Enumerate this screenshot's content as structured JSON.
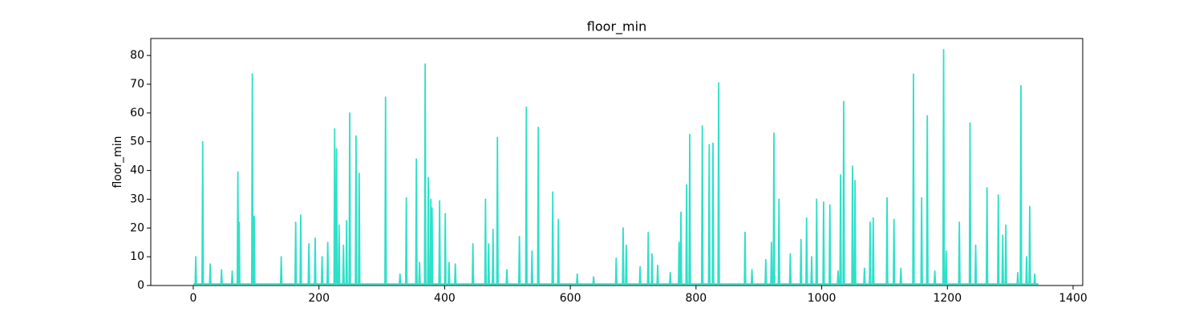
{
  "chart_data": {
    "type": "line",
    "title": "floor_min",
    "ylabel": "floor_min",
    "xlim": [
      -67.6,
      1415.3
    ],
    "ylim": [
      0,
      85.9
    ],
    "xticks": [
      0,
      200,
      400,
      600,
      800,
      1000,
      1200,
      1400
    ],
    "yticks": [
      0,
      10,
      20,
      30,
      40,
      50,
      60,
      70,
      80
    ],
    "grid": false,
    "x": [
      0,
      3,
      4,
      5,
      14,
      15,
      16,
      26,
      27,
      28,
      44,
      45,
      46,
      61,
      62,
      63,
      70,
      71,
      72,
      73,
      74,
      93,
      94,
      95,
      96,
      97,
      98,
      139,
      140,
      141,
      162,
      163,
      164,
      170,
      171,
      172,
      183,
      184,
      185,
      193,
      194,
      195,
      204,
      205,
      206,
      213,
      214,
      215,
      224,
      225,
      226,
      227,
      228,
      229,
      231,
      232,
      233,
      238,
      239,
      240,
      243,
      244,
      245,
      248,
      249,
      250,
      258,
      259,
      260,
      263,
      264,
      265,
      305,
      306,
      307,
      328,
      329,
      330,
      338,
      339,
      340,
      354,
      355,
      356,
      359,
      360,
      361,
      368,
      369,
      370,
      373,
      374,
      375,
      377,
      378,
      379,
      380,
      381,
      391,
      392,
      393,
      400,
      401,
      402,
      406,
      407,
      408,
      416,
      417,
      418,
      444,
      445,
      446,
      464,
      465,
      466,
      469,
      470,
      471,
      476,
      477,
      478,
      483,
      484,
      485,
      498,
      499,
      500,
      518,
      519,
      520,
      529,
      530,
      531,
      538,
      539,
      540,
      548,
      549,
      550,
      571,
      572,
      573,
      580,
      581,
      582,
      610,
      611,
      612,
      636,
      637,
      638,
      672,
      673,
      674,
      683,
      684,
      685,
      688,
      689,
      690,
      710,
      711,
      712,
      723,
      724,
      725,
      729,
      730,
      731,
      738,
      739,
      740,
      758,
      759,
      760,
      772,
      773,
      774,
      775,
      776,
      777,
      784,
      785,
      786,
      789,
      790,
      791,
      809,
      810,
      811,
      820,
      821,
      822,
      826,
      827,
      828,
      835,
      836,
      837,
      877,
      878,
      879,
      888,
      889,
      890,
      910,
      911,
      912,
      919,
      920,
      921,
      923,
      924,
      925,
      931,
      932,
      933,
      949,
      950,
      951,
      966,
      967,
      968,
      975,
      976,
      977,
      983,
      984,
      985,
      991,
      992,
      993,
      1002,
      1003,
      1004,
      1012,
      1013,
      1014,
      1025,
      1026,
      1027,
      1029,
      1030,
      1031,
      1034,
      1035,
      1036,
      1048,
      1049,
      1050,
      1052,
      1053,
      1054,
      1067,
      1068,
      1069,
      1076,
      1077,
      1078,
      1081,
      1082,
      1083,
      1103,
      1104,
      1105,
      1114,
      1115,
      1116,
      1125,
      1126,
      1127,
      1145,
      1146,
      1147,
      1158,
      1159,
      1160,
      1167,
      1168,
      1169,
      1179,
      1180,
      1181,
      1193,
      1194,
      1195,
      1197,
      1198,
      1199,
      1218,
      1219,
      1220,
      1235,
      1236,
      1237,
      1244,
      1245,
      1246,
      1262,
      1263,
      1264,
      1280,
      1281,
      1282,
      1287,
      1288,
      1289,
      1292,
      1293,
      1294,
      1311,
      1312,
      1313,
      1316,
      1317,
      1318,
      1325,
      1326,
      1327,
      1330,
      1331,
      1332,
      1338,
      1339,
      1340,
      1345
    ],
    "series": [
      {
        "color": "#2fe0c8",
        "values": [
          0.5,
          0.5,
          10,
          0.5,
          0.5,
          50,
          0.5,
          0.5,
          7.5,
          0.5,
          0.5,
          5.5,
          0.5,
          0.5,
          5,
          0.5,
          0.5,
          39.5,
          0.5,
          22,
          0.5,
          0.5,
          73.5,
          0.5,
          0.5,
          24,
          0.5,
          0.5,
          10,
          0.5,
          0.5,
          22,
          0.5,
          0.5,
          24.5,
          0.5,
          0.5,
          14.5,
          0.5,
          0.5,
          16.5,
          0.5,
          0.5,
          10,
          0.5,
          0.5,
          15,
          0.5,
          0.5,
          54.5,
          0.5,
          0.5,
          47.5,
          0.5,
          0.5,
          21,
          0.5,
          0.5,
          14,
          0.5,
          0.5,
          22.5,
          0.5,
          0.5,
          60,
          0.5,
          0.5,
          52,
          0.5,
          0.5,
          39,
          0.5,
          0.5,
          65.5,
          0.5,
          0.5,
          4,
          0.5,
          0.5,
          30.5,
          0.5,
          0.5,
          44,
          0.5,
          0.5,
          8,
          0.5,
          0.5,
          77,
          0.5,
          0.5,
          37.5,
          0.5,
          0.5,
          30,
          0.5,
          27,
          0.5,
          0.5,
          29.5,
          0.5,
          0.5,
          25,
          0.5,
          0.5,
          8,
          0.5,
          0.5,
          7.5,
          0.5,
          0.5,
          14.5,
          0.5,
          0.5,
          30,
          0.5,
          0.5,
          14.5,
          0.5,
          0.5,
          19.5,
          0.5,
          0.5,
          51.5,
          0.5,
          0.5,
          5.5,
          0.5,
          0.5,
          17,
          0.5,
          0.5,
          62,
          0.5,
          0.5,
          12,
          0.5,
          0.5,
          55,
          0.5,
          0.5,
          32.5,
          0.5,
          0.5,
          23,
          0.5,
          0.5,
          4,
          0.5,
          0.5,
          3,
          0.5,
          0.5,
          9.5,
          0.5,
          0.5,
          20,
          0.5,
          0.5,
          14,
          0.5,
          0.5,
          6.5,
          0.5,
          0.5,
          18.5,
          0.5,
          0.5,
          11,
          0.5,
          0.5,
          7,
          0.5,
          0.5,
          4.5,
          0.5,
          0.5,
          15,
          0.5,
          0.5,
          25.5,
          0.5,
          0.5,
          35,
          0.5,
          0.5,
          52.5,
          0.5,
          0.5,
          55.5,
          0.5,
          0.5,
          49,
          0.5,
          0.5,
          49.5,
          0.5,
          0.5,
          70.5,
          0.5,
          0.5,
          18.5,
          0.5,
          0.5,
          5.5,
          0.5,
          0.5,
          9,
          0.5,
          0.5,
          15,
          0.5,
          0.5,
          53,
          0.5,
          0.5,
          30,
          0.5,
          0.5,
          11,
          0.5,
          0.5,
          16,
          0.5,
          0.5,
          23.5,
          0.5,
          0.5,
          10,
          0.5,
          0.5,
          30,
          0.5,
          0.5,
          29,
          0.5,
          0.5,
          28,
          0.5,
          0.5,
          5,
          0.5,
          0.5,
          38.5,
          0.5,
          0.5,
          64,
          0.5,
          0.5,
          41.5,
          0.5,
          0.5,
          36.5,
          0.5,
          0.5,
          6,
          0.5,
          0.5,
          22,
          0.5,
          0.5,
          23.5,
          0.5,
          0.5,
          30.5,
          0.5,
          0.5,
          23,
          0.5,
          0.5,
          6,
          0.5,
          0.5,
          73.5,
          0.5,
          0.5,
          30.5,
          0.5,
          0.5,
          59,
          0.5,
          0.5,
          5,
          0.5,
          0.5,
          82,
          0.5,
          0.5,
          12,
          0.5,
          0.5,
          22,
          0.5,
          0.5,
          56.5,
          0.5,
          0.5,
          14,
          0.5,
          0.5,
          34,
          0.5,
          0.5,
          31.5,
          0.5,
          0.5,
          17.5,
          0.5,
          0.5,
          21,
          0.5,
          0.5,
          4.5,
          0.5,
          0.5,
          69.5,
          0.5,
          0.5,
          10,
          0.5,
          0.5,
          27.5,
          0.5,
          0.5,
          4,
          0.5,
          0.5
        ]
      }
    ]
  }
}
